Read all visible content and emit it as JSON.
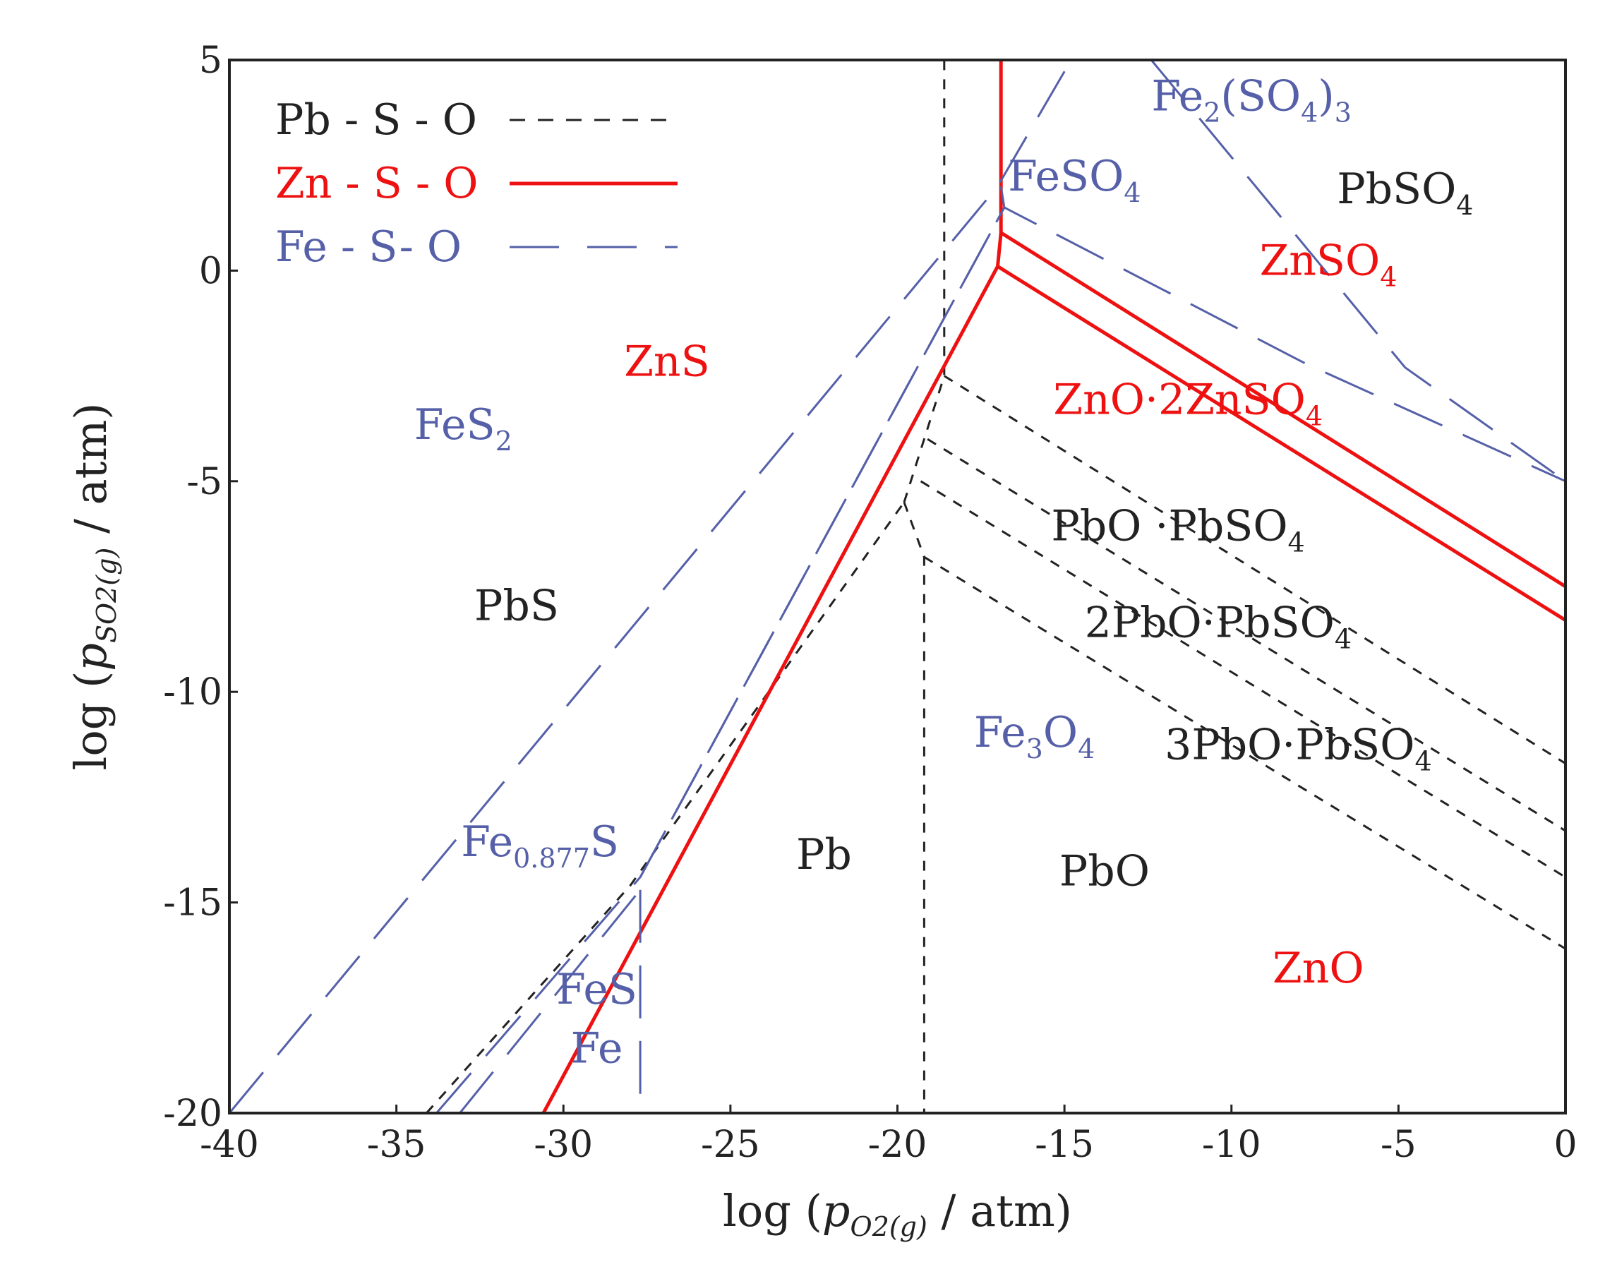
{
  "chart_data": {
    "type": "line",
    "title": "",
    "xlabel": {
      "prefix": "log (",
      "var": "p",
      "sub": "O2(g)",
      "suffix": " / atm)"
    },
    "ylabel": {
      "prefix": "log (",
      "var": "p",
      "sub": "SO2(g)",
      "suffix": " / atm)"
    },
    "xlim": [
      -40,
      0
    ],
    "ylim": [
      -20,
      5
    ],
    "xticks": [
      -40,
      -35,
      -30,
      -25,
      -20,
      -15,
      -10,
      -5,
      0
    ],
    "xtick_labels": [
      "-40",
      "-35",
      "-30",
      "-25",
      "-20",
      "-15",
      "-10",
      "-5",
      "0"
    ],
    "yticks": [
      -20,
      -15,
      -10,
      -5,
      0,
      5
    ],
    "ytick_labels": [
      "-20",
      "-15",
      "-10",
      "-5",
      "0",
      "5"
    ],
    "grid": false,
    "legend_position": "top-left",
    "colors": {
      "pb": "#222222",
      "zn": "#ee1111",
      "fe": "#5560a8"
    },
    "series": [
      {
        "name": "Pb - S - O",
        "color_key": "pb",
        "style": "short-dash",
        "segments": [
          [
            [
              -34.1,
              -20
            ],
            [
              -28,
              -14.6
            ],
            [
              -19.8,
              -5.5
            ]
          ],
          [
            [
              -19.8,
              -5.5
            ],
            [
              -19.2,
              -6.8
            ],
            [
              -19.2,
              -20
            ]
          ],
          [
            [
              -19.8,
              -5.5
            ],
            [
              -18.6,
              -2.5
            ],
            [
              -18.6,
              5
            ]
          ],
          [
            [
              -18.6,
              -2.5
            ],
            [
              0,
              -11.7
            ]
          ],
          [
            [
              -19.1,
              -4.0
            ],
            [
              0,
              -13.3
            ]
          ],
          [
            [
              -19.3,
              -5.0
            ],
            [
              0,
              -14.4
            ]
          ],
          [
            [
              -19.2,
              -6.8
            ],
            [
              0,
              -16.1
            ]
          ]
        ]
      },
      {
        "name": "Zn - S - O",
        "color_key": "zn",
        "style": "solid",
        "segments": [
          [
            [
              -30.6,
              -20
            ],
            [
              -17.0,
              0.1
            ],
            [
              -16.9,
              0.9
            ],
            [
              -16.9,
              5
            ]
          ],
          [
            [
              -17.0,
              0.1
            ],
            [
              0,
              -8.3
            ]
          ],
          [
            [
              -16.9,
              0.9
            ],
            [
              0,
              -7.5
            ]
          ]
        ]
      },
      {
        "name": "Fe - S- O",
        "color_key": "fe",
        "style": "long-dash",
        "segments": [
          [
            [
              -40,
              -20
            ],
            [
              -17.0,
              2.0
            ],
            [
              -14.8,
              5
            ]
          ],
          [
            [
              -33.8,
              -20
            ],
            [
              -27.7,
              -14.4
            ],
            [
              -16.8,
              1.5
            ],
            [
              -7.8,
              -2.2
            ],
            [
              0,
              -5.0
            ]
          ],
          [
            [
              -33.1,
              -20
            ],
            [
              -27.7,
              -14.7
            ]
          ],
          [
            [
              -27.7,
              -14.7
            ],
            [
              -27.7,
              -20
            ]
          ],
          [
            [
              -27.7,
              -14.4
            ],
            [
              -16.8,
              1.5
            ]
          ],
          [
            [
              -16.8,
              1.5
            ],
            [
              -16.9,
              2.0
            ]
          ],
          [
            [
              -12.4,
              5
            ],
            [
              -4.8,
              -2.3
            ],
            [
              0,
              -5.0
            ]
          ]
        ]
      }
    ],
    "regions": [
      {
        "color_key": "fe",
        "x": -9.4,
        "y": 3.8,
        "parts": [
          {
            "t": "Fe"
          },
          {
            "t": "2",
            "s": true
          },
          {
            "t": "(SO"
          },
          {
            "t": "4",
            "s": true
          },
          {
            "t": ")"
          },
          {
            "t": "3",
            "s": true
          }
        ]
      },
      {
        "color_key": "fe",
        "x": -14.7,
        "y": 1.9,
        "parts": [
          {
            "t": "FeSO"
          },
          {
            "t": "4",
            "s": true
          }
        ]
      },
      {
        "color_key": "pb",
        "x": -4.8,
        "y": 1.6,
        "parts": [
          {
            "t": "PbSO"
          },
          {
            "t": "4",
            "s": true
          }
        ]
      },
      {
        "color_key": "zn",
        "x": -7.1,
        "y": -0.1,
        "parts": [
          {
            "t": "ZnSO"
          },
          {
            "t": "4",
            "s": true
          }
        ]
      },
      {
        "color_key": "zn",
        "x": -26.9,
        "y": -2.5,
        "parts": [
          {
            "t": "ZnS"
          }
        ]
      },
      {
        "color_key": "fe",
        "x": -33.0,
        "y": -4.0,
        "parts": [
          {
            "t": "FeS"
          },
          {
            "t": "2",
            "s": true
          }
        ]
      },
      {
        "color_key": "zn",
        "x": -11.3,
        "y": -3.4,
        "parts": [
          {
            "t": "ZnO·2ZnSO"
          },
          {
            "t": "4",
            "s": true
          }
        ]
      },
      {
        "color_key": "pb",
        "x": -11.6,
        "y": -6.4,
        "parts": [
          {
            "t": "PbO ·PbSO"
          },
          {
            "t": "4",
            "s": true
          }
        ]
      },
      {
        "color_key": "pb",
        "x": -31.4,
        "y": -8.3,
        "parts": [
          {
            "t": "PbS"
          }
        ]
      },
      {
        "color_key": "pb",
        "x": -10.4,
        "y": -8.7,
        "parts": [
          {
            "t": "2PbO·PbSO"
          },
          {
            "t": "4",
            "s": true
          }
        ]
      },
      {
        "color_key": "fe",
        "x": -15.9,
        "y": -11.3,
        "parts": [
          {
            "t": "Fe"
          },
          {
            "t": "3",
            "s": true
          },
          {
            "t": "O"
          },
          {
            "t": "4",
            "s": true
          }
        ]
      },
      {
        "color_key": "pb",
        "x": -8.0,
        "y": -11.6,
        "parts": [
          {
            "t": "3PbO·PbSO"
          },
          {
            "t": "4",
            "s": true
          }
        ]
      },
      {
        "color_key": "fe",
        "x": -30.7,
        "y": -13.9,
        "parts": [
          {
            "t": "Fe"
          },
          {
            "t": "0.877",
            "s": true
          },
          {
            "t": "S"
          }
        ]
      },
      {
        "color_key": "pb",
        "x": -22.2,
        "y": -14.2,
        "parts": [
          {
            "t": "Pb"
          }
        ]
      },
      {
        "color_key": "pb",
        "x": -13.8,
        "y": -14.6,
        "parts": [
          {
            "t": "PbO"
          }
        ]
      },
      {
        "color_key": "fe",
        "x": -29.0,
        "y": -17.4,
        "parts": [
          {
            "t": "FeS"
          }
        ]
      },
      {
        "color_key": "zn",
        "x": -7.4,
        "y": -16.9,
        "parts": [
          {
            "t": "ZnO"
          }
        ]
      },
      {
        "color_key": "fe",
        "x": -29.0,
        "y": -18.8,
        "parts": [
          {
            "t": "Fe"
          }
        ]
      }
    ]
  }
}
